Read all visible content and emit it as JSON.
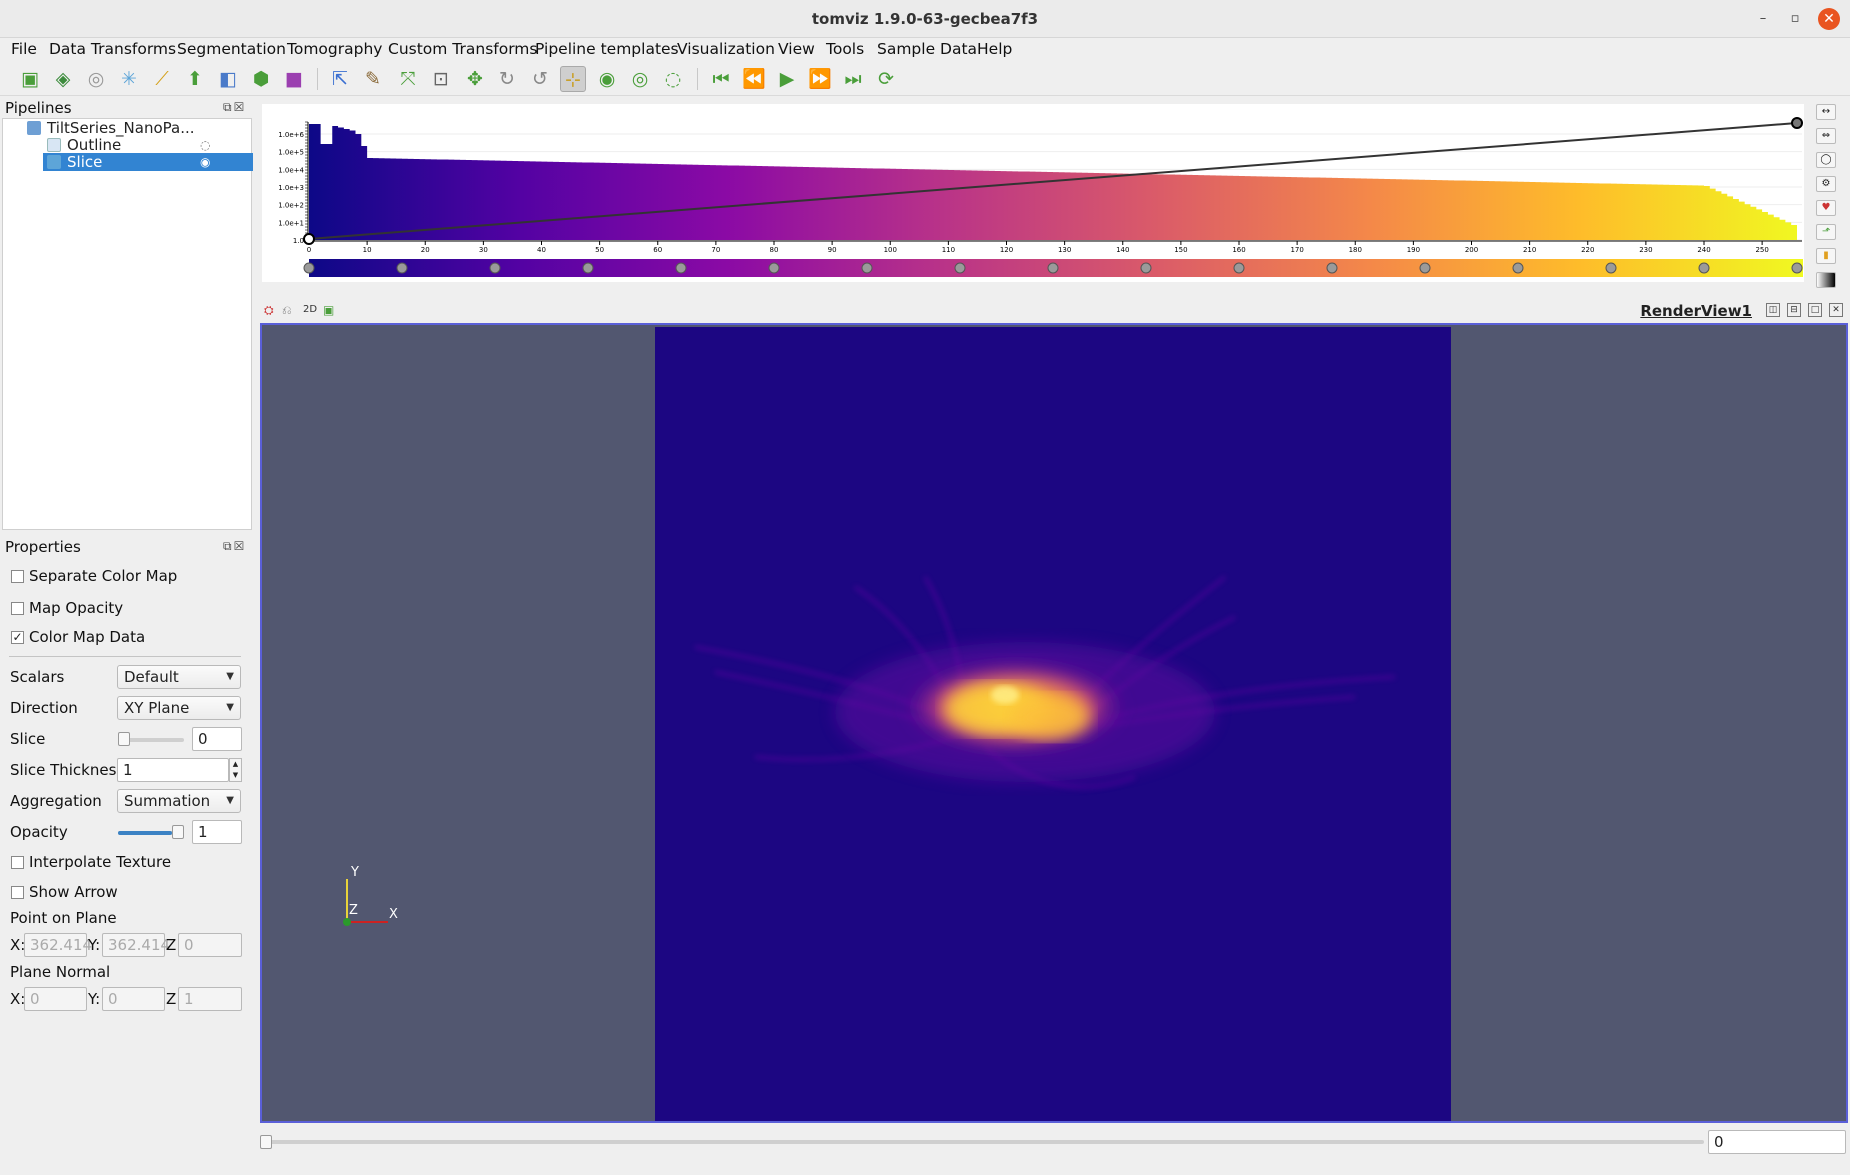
{
  "window": {
    "title": "tomviz 1.9.0-63-gecbea7f3"
  },
  "menu": [
    "File",
    "Data Transforms",
    "Segmentation",
    "Tomography",
    "Custom Transforms",
    "Pipeline templates",
    "Visualization",
    "View",
    "Tools",
    "Sample Data",
    "Help"
  ],
  "pipelines": {
    "title": "Pipelines",
    "items": [
      {
        "label": "TiltSeries_NanoPa..."
      },
      {
        "label": "Outline"
      },
      {
        "label": "Slice"
      }
    ]
  },
  "properties": {
    "title": "Properties",
    "separate_color_map": {
      "label": "Separate Color Map",
      "checked": false
    },
    "map_opacity": {
      "label": "Map Opacity",
      "checked": false
    },
    "color_map_data": {
      "label": "Color Map Data",
      "checked": true,
      "mark": "✓"
    },
    "scalars": {
      "label": "Scalars",
      "value": "Default"
    },
    "direction": {
      "label": "Direction",
      "value": "XY Plane"
    },
    "slice": {
      "label": "Slice",
      "value": "0"
    },
    "slice_thickness": {
      "label": "Slice Thickness",
      "value": "1"
    },
    "aggregation": {
      "label": "Aggregation",
      "value": "Summation"
    },
    "opacity": {
      "label": "Opacity",
      "value": "1",
      "level": 1.0
    },
    "interpolate_texture": {
      "label": "Interpolate Texture",
      "checked": false
    },
    "show_arrow": {
      "label": "Show Arrow",
      "checked": false
    },
    "point_on_plane": {
      "label": "Point on Plane",
      "x_label": "X:",
      "x": "362.414",
      "y_label": "Y:",
      "y": "362.414",
      "z_label": "Z:",
      "z": "0"
    },
    "plane_normal": {
      "label": "Plane Normal",
      "x_label": "X:",
      "x": "0",
      "y_label": "Y:",
      "y": "0",
      "z_label": "Z:",
      "z": "1"
    }
  },
  "histogram": {
    "y_ticks": [
      "1.0e+6",
      "1.0e+5",
      "1.0e+4",
      "1.0e+3",
      "1.0e+2",
      "1.0e+1",
      "1.0"
    ],
    "x_ticks": [
      "0",
      "10",
      "20",
      "30",
      "40",
      "50",
      "60",
      "70",
      "80",
      "90",
      "100",
      "110",
      "120",
      "130",
      "140",
      "150",
      "160",
      "170",
      "180",
      "190",
      "200",
      "210",
      "220",
      "230",
      "240",
      "250"
    ],
    "x_max": 256,
    "opacity_points": [
      [
        0,
        0
      ],
      [
        256,
        1
      ]
    ],
    "colormap": "plasma",
    "colormap_stops": [
      "#0d0887",
      "#5302a3",
      "#8b0aa5",
      "#b83289",
      "#db5c68",
      "#f48849",
      "#febc2a",
      "#f0f921"
    ]
  },
  "renderview": {
    "title": "RenderView1",
    "axes": {
      "x": "X",
      "y": "Y",
      "z": "Z"
    }
  },
  "timeline": {
    "value": "0"
  }
}
